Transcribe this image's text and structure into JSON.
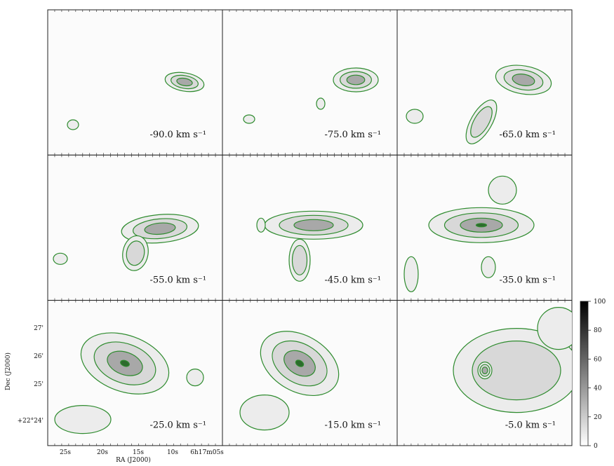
{
  "figure": {
    "panels": [
      {
        "label": "-90.0 km s⁻¹"
      },
      {
        "label": "-75.0 km s⁻¹"
      },
      {
        "label": "-65.0 km s⁻¹"
      },
      {
        "label": "-55.0 km s⁻¹"
      },
      {
        "label": "-45.0 km s⁻¹"
      },
      {
        "label": "-35.0 km s⁻¹"
      },
      {
        "label": "-25.0 km s⁻¹"
      },
      {
        "label": "-15.0 km s⁻¹"
      },
      {
        "label": "-5.0 km s⁻¹"
      }
    ],
    "x_label": "RA (J2000)",
    "y_label": "Dec (J2000)",
    "x_ticks": [
      "25s",
      "20s",
      "15s",
      "10s",
      "6h17m05s"
    ],
    "y_ticks": [
      "27'",
      "26'",
      "25'",
      "+22°24'"
    ],
    "colorbar": {
      "lim": [
        0,
        100
      ],
      "ticks": [
        0,
        20,
        40,
        60,
        80,
        100
      ]
    }
  }
}
